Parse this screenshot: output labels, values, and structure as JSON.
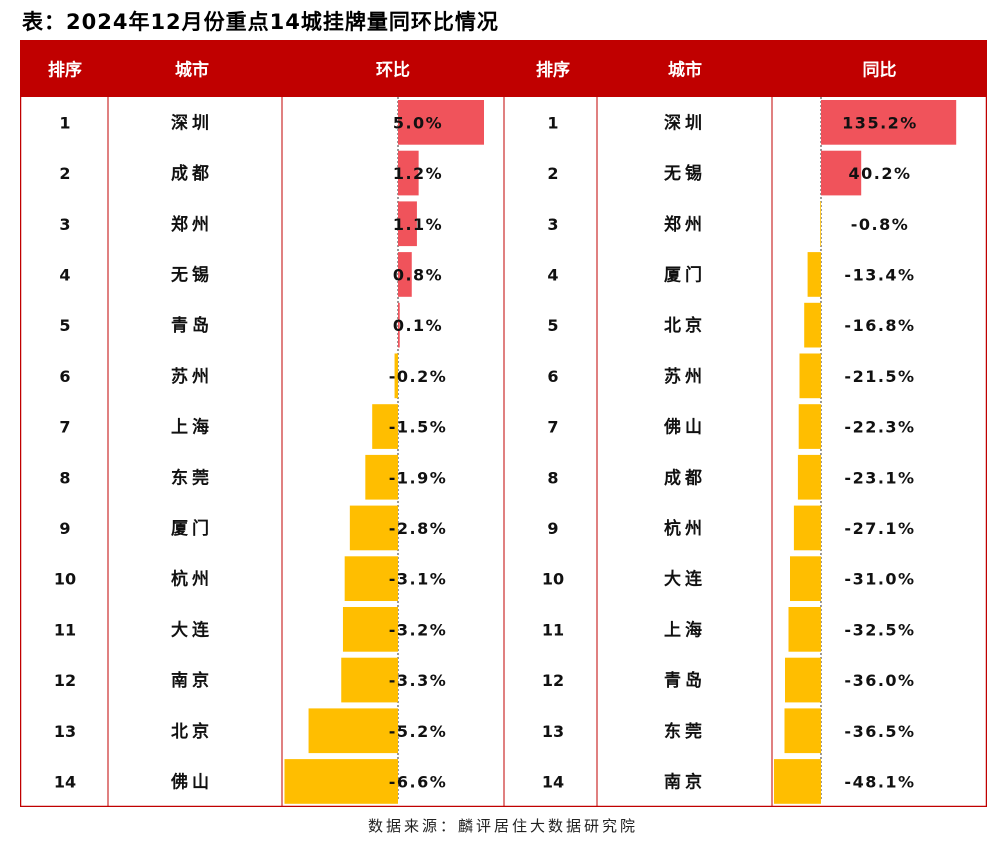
{
  "title": "表：2024年12月份重点14城挂牌量同环比情况",
  "source": "数据来源：麟评居住大数据研究院",
  "colors": {
    "header": "#c00000",
    "positive": "#f0535b",
    "negative": "#ffbe00"
  },
  "chart_data": [
    {
      "type": "table",
      "title": "环比",
      "headers": [
        "排序",
        "城市",
        "环比"
      ],
      "rows": [
        {
          "rank": "1",
          "city": "深圳",
          "label": "5.0%",
          "value": 5.0
        },
        {
          "rank": "2",
          "city": "成都",
          "label": "1.2%",
          "value": 1.2
        },
        {
          "rank": "3",
          "city": "郑州",
          "label": "1.1%",
          "value": 1.1
        },
        {
          "rank": "4",
          "city": "无锡",
          "label": "0.8%",
          "value": 0.8
        },
        {
          "rank": "5",
          "city": "青岛",
          "label": "0.1%",
          "value": 0.1
        },
        {
          "rank": "6",
          "city": "苏州",
          "label": "-0.2%",
          "value": -0.2
        },
        {
          "rank": "7",
          "city": "上海",
          "label": "-1.5%",
          "value": -1.5
        },
        {
          "rank": "8",
          "city": "东莞",
          "label": "-1.9%",
          "value": -1.9
        },
        {
          "rank": "9",
          "city": "厦门",
          "label": "-2.8%",
          "value": -2.8
        },
        {
          "rank": "10",
          "city": "杭州",
          "label": "-3.1%",
          "value": -3.1
        },
        {
          "rank": "11",
          "city": "大连",
          "label": "-3.2%",
          "value": -3.2
        },
        {
          "rank": "12",
          "city": "南京",
          "label": "-3.3%",
          "value": -3.3
        },
        {
          "rank": "13",
          "city": "北京",
          "label": "-5.2%",
          "value": -5.2
        },
        {
          "rank": "14",
          "city": "佛山",
          "label": "-6.6%",
          "value": -6.6
        }
      ]
    },
    {
      "type": "table",
      "title": "同比",
      "headers": [
        "排序",
        "城市",
        "同比"
      ],
      "rows": [
        {
          "rank": "1",
          "city": "深圳",
          "label": "135.2%",
          "value": 135.2
        },
        {
          "rank": "2",
          "city": "无锡",
          "label": "40.2%",
          "value": 40.2
        },
        {
          "rank": "3",
          "city": "郑州",
          "label": "-0.8%",
          "value": -0.8
        },
        {
          "rank": "4",
          "city": "厦门",
          "label": "-13.4%",
          "value": -13.4
        },
        {
          "rank": "5",
          "city": "北京",
          "label": "-16.8%",
          "value": -16.8
        },
        {
          "rank": "6",
          "city": "苏州",
          "label": "-21.5%",
          "value": -21.5
        },
        {
          "rank": "7",
          "city": "佛山",
          "label": "-22.3%",
          "value": -22.3
        },
        {
          "rank": "8",
          "city": "成都",
          "label": "-23.1%",
          "value": -23.1
        },
        {
          "rank": "9",
          "city": "杭州",
          "label": "-27.1%",
          "value": -27.1
        },
        {
          "rank": "10",
          "city": "大连",
          "label": "-31.0%",
          "value": -31.0
        },
        {
          "rank": "11",
          "city": "上海",
          "label": "-32.5%",
          "value": -32.5
        },
        {
          "rank": "12",
          "city": "青岛",
          "label": "-36.0%",
          "value": -36.0
        },
        {
          "rank": "13",
          "city": "东莞",
          "label": "-36.5%",
          "value": -36.5
        },
        {
          "rank": "14",
          "city": "南京",
          "label": "-48.1%",
          "value": -48.1
        }
      ]
    }
  ]
}
